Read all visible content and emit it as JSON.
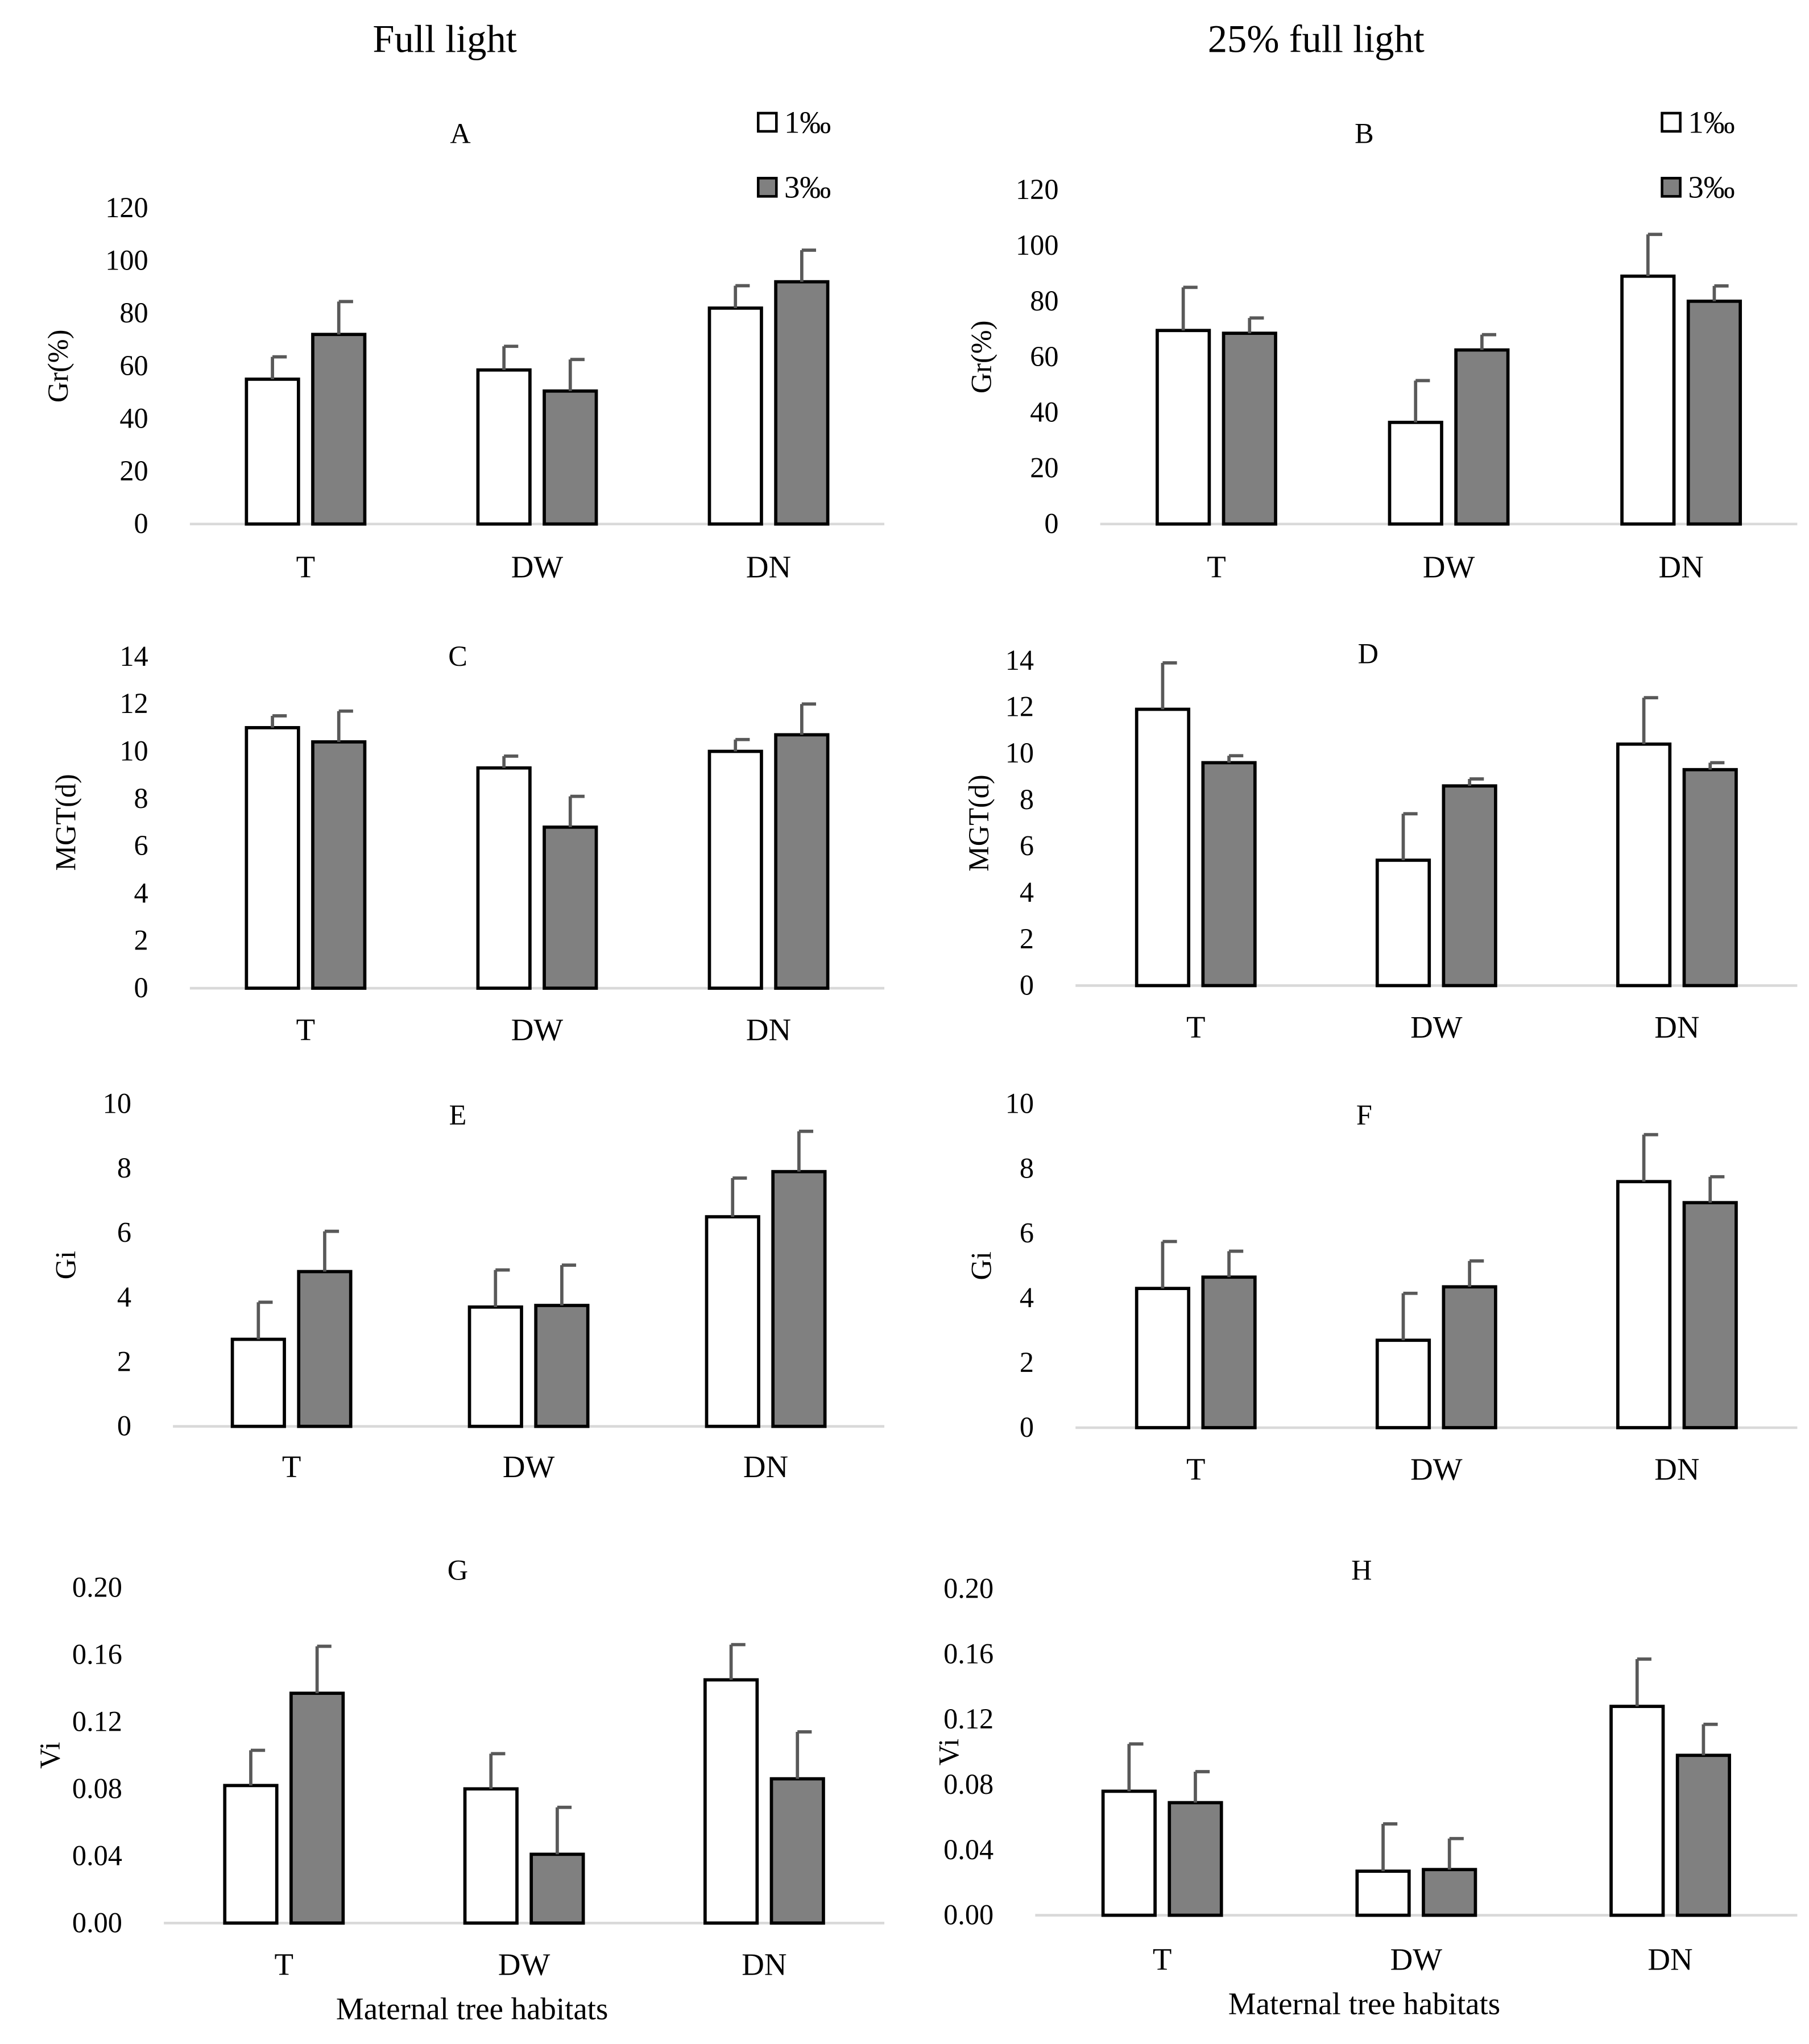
{
  "headers": {
    "left": "Full light",
    "right": "25% full light"
  },
  "legend": {
    "items": [
      {
        "label": "1‰",
        "color": "#ffffff"
      },
      {
        "label": "3‰",
        "color": "#808080"
      }
    ]
  },
  "colors": {
    "series_1": "#ffffff",
    "series_2": "#808080",
    "bar_outline": "#000000",
    "error_bar": "#595959",
    "axis": "#d9d9d9"
  },
  "chart_data": [
    {
      "panel": "A",
      "type": "bar",
      "ylabel": "Gr(%)",
      "xlabel": "",
      "categories": [
        "T",
        "DW",
        "DN"
      ],
      "ylim": [
        0,
        120
      ],
      "yticks": [
        "0",
        "20",
        "40",
        "60",
        "80",
        "100",
        "120"
      ],
      "legend": "top-right",
      "series": [
        {
          "name": "1‰",
          "values": [
            55,
            58.5,
            82
          ],
          "errors": [
            8.5,
            9,
            8.5
          ]
        },
        {
          "name": "3‰",
          "values": [
            72,
            50.5,
            92
          ],
          "errors": [
            12.5,
            12,
            12
          ]
        }
      ]
    },
    {
      "panel": "B",
      "type": "bar",
      "ylabel": "Gr(%)",
      "xlabel": "",
      "categories": [
        "T",
        "DW",
        "DN"
      ],
      "ylim": [
        0,
        120
      ],
      "yticks": [
        "0",
        "20",
        "40",
        "60",
        "80",
        "100",
        "120"
      ],
      "legend": "top-right",
      "series": [
        {
          "name": "1‰",
          "values": [
            69.5,
            36.5,
            89
          ],
          "errors": [
            15.5,
            15,
            15
          ]
        },
        {
          "name": "3‰",
          "values": [
            68.5,
            62.5,
            80
          ],
          "errors": [
            5.5,
            5.5,
            5.5
          ]
        }
      ]
    },
    {
      "panel": "C",
      "type": "bar",
      "ylabel": "MGT(d)",
      "xlabel": "",
      "categories": [
        "T",
        "DW",
        "DN"
      ],
      "ylim": [
        0,
        14
      ],
      "yticks": [
        "0",
        "2",
        "4",
        "6",
        "8",
        "10",
        "12",
        "14"
      ],
      "series": [
        {
          "name": "1‰",
          "values": [
            11,
            9.3,
            10
          ],
          "errors": [
            0.5,
            0.5,
            0.5
          ]
        },
        {
          "name": "3‰",
          "values": [
            10.4,
            6.8,
            10.7
          ],
          "errors": [
            1.3,
            1.3,
            1.3
          ]
        }
      ]
    },
    {
      "panel": "D",
      "type": "bar",
      "ylabel": "MGT(d)",
      "xlabel": "",
      "categories": [
        "T",
        "DW",
        "DN"
      ],
      "ylim": [
        0,
        14
      ],
      "yticks": [
        "0",
        "2",
        "4",
        "6",
        "8",
        "10",
        "12",
        "14"
      ],
      "series": [
        {
          "name": "1‰",
          "values": [
            11.9,
            5.4,
            10.4
          ],
          "errors": [
            2,
            2,
            2
          ]
        },
        {
          "name": "3‰",
          "values": [
            9.6,
            8.6,
            9.3
          ],
          "errors": [
            0.3,
            0.3,
            0.3
          ]
        }
      ]
    },
    {
      "panel": "E",
      "type": "bar",
      "ylabel": "Gi",
      "xlabel": "",
      "categories": [
        "T",
        "DW",
        "DN"
      ],
      "ylim": [
        0,
        10
      ],
      "yticks": [
        "0",
        "2",
        "4",
        "6",
        "8",
        "10"
      ],
      "series": [
        {
          "name": "1‰",
          "values": [
            2.7,
            3.7,
            6.5
          ],
          "errors": [
            1.15,
            1.15,
            1.2
          ]
        },
        {
          "name": "3‰",
          "values": [
            4.8,
            3.75,
            7.9
          ],
          "errors": [
            1.25,
            1.25,
            1.25
          ]
        }
      ]
    },
    {
      "panel": "F",
      "type": "bar",
      "ylabel": "Gi",
      "xlabel": "",
      "categories": [
        "T",
        "DW",
        "DN"
      ],
      "ylim": [
        0,
        10
      ],
      "yticks": [
        "0",
        "2",
        "4",
        "6",
        "8",
        "10"
      ],
      "series": [
        {
          "name": "1‰",
          "values": [
            4.3,
            2.7,
            7.6
          ],
          "errors": [
            1.45,
            1.45,
            1.45
          ]
        },
        {
          "name": "3‰",
          "values": [
            4.65,
            4.35,
            6.95
          ],
          "errors": [
            0.8,
            0.8,
            0.8
          ]
        }
      ]
    },
    {
      "panel": "G",
      "type": "bar",
      "ylabel": "Vi",
      "xlabel": "Maternal tree habitats",
      "categories": [
        "T",
        "DW",
        "DN"
      ],
      "ylim": [
        0,
        0.2
      ],
      "yticks": [
        "0.00",
        "0.04",
        "0.08",
        "0.12",
        "0.16",
        "0.20"
      ],
      "series": [
        {
          "name": "1‰",
          "values": [
            0.082,
            0.08,
            0.145
          ],
          "errors": [
            0.021,
            0.021,
            0.021
          ]
        },
        {
          "name": "3‰",
          "values": [
            0.137,
            0.041,
            0.086
          ],
          "errors": [
            0.028,
            0.028,
            0.028
          ]
        }
      ]
    },
    {
      "panel": "H",
      "type": "bar",
      "ylabel": "Vi",
      "xlabel": "Maternal tree habitats",
      "categories": [
        "T",
        "DW",
        "DN"
      ],
      "ylim": [
        0,
        0.2
      ],
      "yticks": [
        "0.00",
        "0.04",
        "0.08",
        "0.12",
        "0.16",
        "0.20"
      ],
      "series": [
        {
          "name": "1‰",
          "values": [
            0.076,
            0.027,
            0.128
          ],
          "errors": [
            0.029,
            0.029,
            0.029
          ]
        },
        {
          "name": "3‰",
          "values": [
            0.069,
            0.028,
            0.098
          ],
          "errors": [
            0.019,
            0.019,
            0.019
          ]
        }
      ]
    }
  ]
}
